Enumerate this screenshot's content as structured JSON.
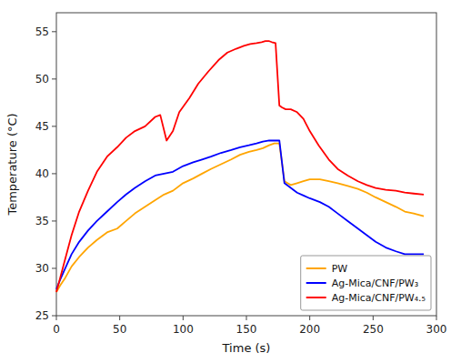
{
  "chart_data": {
    "type": "line",
    "xlabel": "Time (s)",
    "ylabel": "Temperature (°C)",
    "xlim": [
      0,
      300
    ],
    "ylim": [
      25,
      57
    ],
    "xticks": [
      0,
      50,
      100,
      150,
      200,
      250,
      300
    ],
    "yticks": [
      25,
      30,
      35,
      40,
      45,
      50,
      55
    ],
    "grid": false,
    "legend": "lower right",
    "series": [
      {
        "name": "PW",
        "color": "#FFA500",
        "x": [
          0,
          3,
          7,
          12,
          18,
          25,
          32,
          40,
          48,
          55,
          62,
          70,
          78,
          85,
          92,
          100,
          108,
          115,
          122,
          130,
          138,
          145,
          152,
          158,
          163,
          168,
          172,
          176,
          180,
          185,
          190,
          195,
          200,
          208,
          215,
          222,
          230,
          238,
          245,
          252,
          260,
          268,
          275,
          282,
          290
        ],
        "values": [
          27.5,
          28.2,
          29.0,
          30.2,
          31.2,
          32.2,
          33.0,
          33.8,
          34.2,
          35.0,
          35.8,
          36.5,
          37.2,
          37.8,
          38.2,
          39.0,
          39.5,
          40.0,
          40.5,
          41.0,
          41.5,
          42.0,
          42.3,
          42.5,
          42.7,
          43.0,
          43.2,
          43.2,
          39.2,
          38.8,
          39.0,
          39.2,
          39.4,
          39.4,
          39.2,
          39.0,
          38.7,
          38.4,
          38.0,
          37.5,
          37.0,
          36.5,
          36.0,
          35.8,
          35.5
        ]
      },
      {
        "name": "Ag-Mica/CNF/PW₃",
        "color": "#0000FF",
        "x": [
          0,
          3,
          7,
          12,
          18,
          25,
          32,
          40,
          48,
          55,
          62,
          70,
          78,
          85,
          92,
          100,
          108,
          115,
          122,
          130,
          138,
          145,
          152,
          158,
          163,
          168,
          172,
          176,
          180,
          185,
          190,
          195,
          200,
          208,
          215,
          222,
          230,
          238,
          245,
          252,
          260,
          268,
          275,
          282,
          290
        ],
        "values": [
          27.8,
          28.8,
          30.0,
          31.5,
          32.8,
          34.0,
          35.0,
          36.0,
          37.0,
          37.8,
          38.5,
          39.2,
          39.8,
          40.0,
          40.2,
          40.8,
          41.2,
          41.5,
          41.8,
          42.2,
          42.5,
          42.8,
          43.0,
          43.2,
          43.4,
          43.5,
          43.5,
          43.5,
          39.0,
          38.5,
          38.0,
          37.7,
          37.4,
          37.0,
          36.5,
          35.8,
          35.0,
          34.2,
          33.5,
          32.8,
          32.2,
          31.8,
          31.5,
          31.5,
          31.5
        ]
      },
      {
        "name": "Ag-Mica/CNF/PW₄.₅",
        "color": "#FF0000",
        "x": [
          0,
          3,
          7,
          12,
          18,
          25,
          32,
          40,
          48,
          55,
          62,
          70,
          78,
          82,
          87,
          92,
          97,
          105,
          112,
          120,
          128,
          135,
          142,
          148,
          153,
          158,
          162,
          165,
          168,
          170,
          173,
          176,
          178,
          181,
          185,
          190,
          195,
          200,
          207,
          215,
          222,
          230,
          238,
          245,
          252,
          260,
          268,
          275,
          282,
          290
        ],
        "values": [
          27.5,
          29.0,
          31.0,
          33.5,
          36.0,
          38.2,
          40.2,
          41.8,
          42.8,
          43.8,
          44.5,
          45.0,
          46.0,
          46.2,
          43.5,
          44.5,
          46.5,
          48.0,
          49.5,
          50.8,
          52.0,
          52.8,
          53.2,
          53.5,
          53.7,
          53.8,
          53.9,
          54.0,
          54.0,
          53.9,
          53.8,
          47.2,
          47.0,
          46.8,
          46.8,
          46.5,
          45.8,
          44.5,
          43.0,
          41.5,
          40.5,
          39.8,
          39.2,
          38.8,
          38.5,
          38.3,
          38.2,
          38.0,
          37.9,
          37.8
        ]
      }
    ]
  }
}
